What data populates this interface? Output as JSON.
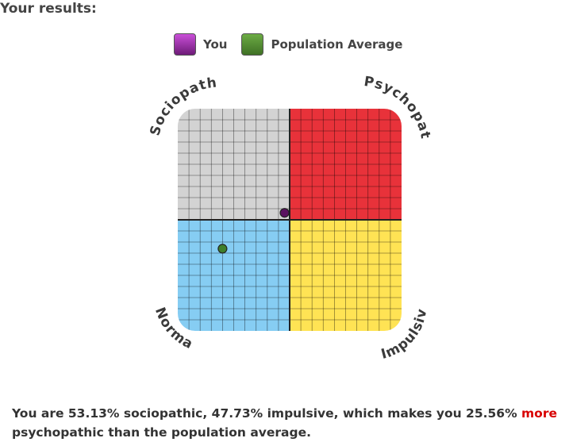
{
  "header": {
    "title": "Your results:"
  },
  "legend": [
    {
      "label": "You",
      "color": "#8a2f95"
    },
    {
      "label": "Population Average",
      "color": "#4e8a2e"
    }
  ],
  "chart_data": {
    "type": "scatter",
    "corner_labels": {
      "top_left": "Sociopath",
      "top_right": "Psychopath",
      "bottom_left": "Normal",
      "bottom_right": "Impulsive"
    },
    "quadrant_colors": {
      "top_left": "#d3d3d3",
      "top_right": "#e8323a",
      "bottom_left": "#86cdf3",
      "bottom_right": "#ffe354"
    },
    "xlim": [
      0,
      100
    ],
    "ylim": [
      0,
      100
    ],
    "x_meaning": "impulsive",
    "y_meaning": "sociopathic",
    "grid": true,
    "series": [
      {
        "name": "You",
        "x": 47.73,
        "y": 53.13,
        "color": "#5a1260"
      },
      {
        "name": "Population Average",
        "x": 20,
        "y": 37,
        "color": "#3f7f2a"
      }
    ]
  },
  "summary": {
    "text_before": "You are 53.13% sociopathic, 47.73% impulsive, which makes you 25.56%",
    "highlight": "more",
    "text_after": "psychopathic than the population average."
  }
}
